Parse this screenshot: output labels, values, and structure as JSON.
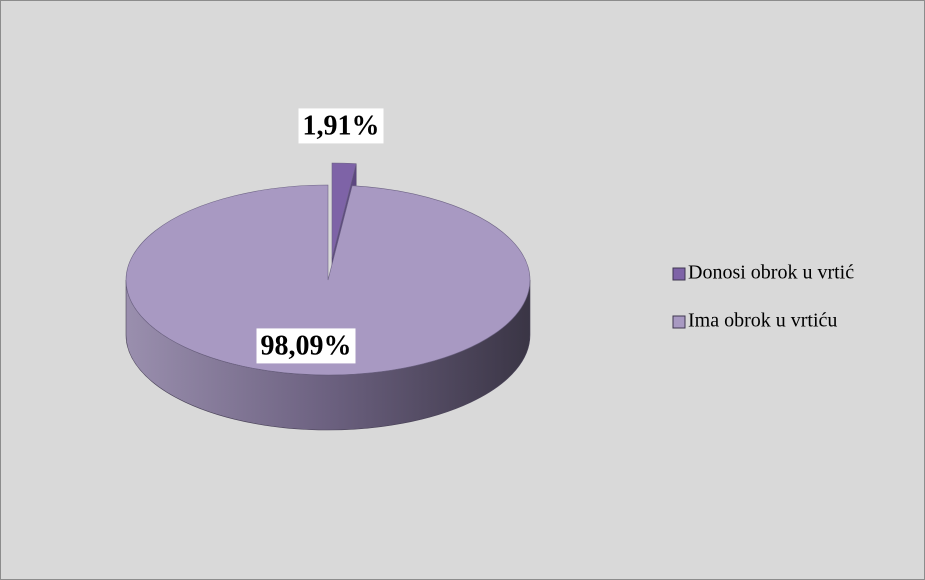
{
  "chart_data": {
    "type": "pie",
    "categories": [
      "Donosi obrok u vrtić",
      "Ima obrok u vrtiću"
    ],
    "values": [
      1.91,
      98.09
    ],
    "value_labels": [
      "1,91%",
      "98,09%"
    ],
    "colors": [
      "#7e63a7",
      "#a899c2"
    ],
    "legend": "right"
  }
}
